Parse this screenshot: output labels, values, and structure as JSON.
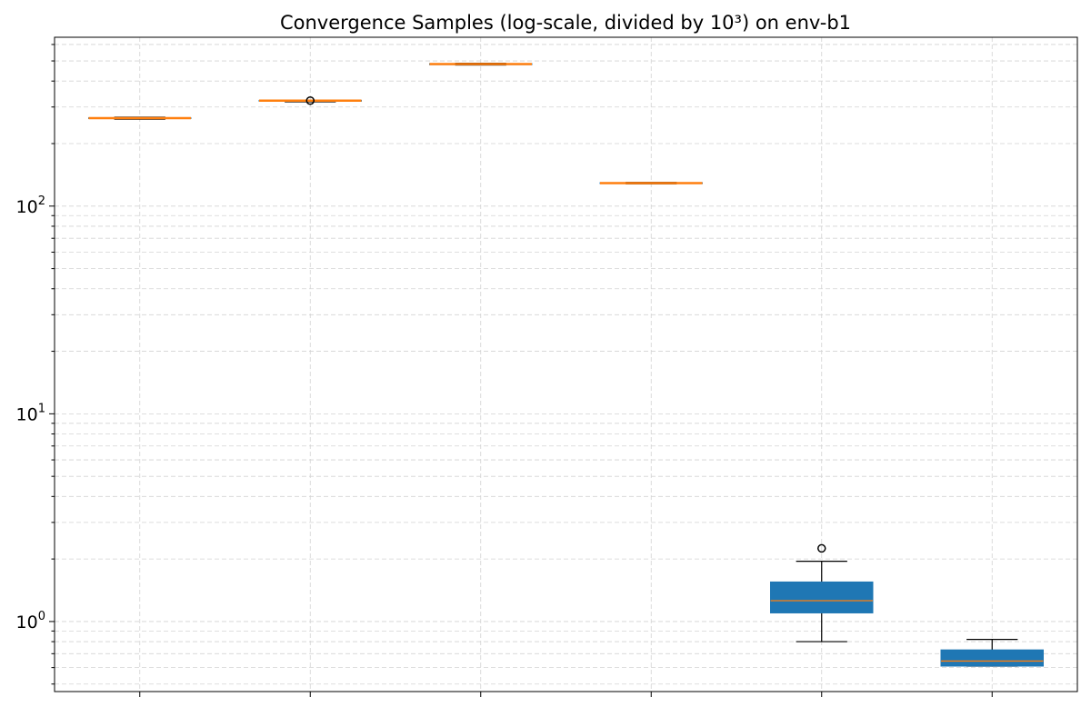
{
  "chart_data": {
    "type": "box",
    "title": "Convergence Samples (log-scale, divided by 10³) on env-b1",
    "xlabel": "",
    "ylabel": "",
    "yscale": "log",
    "ylim": [
      0.46,
      650
    ],
    "grid": true,
    "y_major_ticks": [
      {
        "value": 1,
        "base": "10",
        "exp": "0"
      },
      {
        "value": 10,
        "base": "10",
        "exp": "1"
      },
      {
        "value": 100,
        "base": "10",
        "exp": "2"
      }
    ],
    "categories": [
      "",
      "",
      "",
      "",
      "",
      ""
    ],
    "boxes": [
      {
        "whisker_low": 262,
        "q1": 264,
        "median": 265,
        "q3": 266,
        "whisker_high": 268,
        "outliers": []
      },
      {
        "whisker_low": 318,
        "q1": 320,
        "median": 322,
        "q3": 323,
        "whisker_high": 324,
        "outliers": [
          322
        ]
      },
      {
        "whisker_low": 478,
        "q1": 480,
        "median": 483,
        "q3": 485,
        "whisker_high": 487,
        "outliers": []
      },
      {
        "whisker_low": 128,
        "q1": 128.5,
        "median": 129,
        "q3": 129.5,
        "whisker_high": 130,
        "outliers": []
      },
      {
        "whisker_low": 0.8,
        "q1": 1.1,
        "median": 1.26,
        "q3": 1.55,
        "whisker_high": 1.95,
        "outliers": [
          2.25
        ]
      },
      {
        "whisker_low": 0.61,
        "q1": 0.61,
        "median": 0.645,
        "q3": 0.73,
        "whisker_high": 0.82,
        "outliers": []
      }
    ],
    "colors": {
      "box_fill": "#1f77b4",
      "median": "#ff7f0e",
      "whisker": "#000000",
      "grid": "#d3d3d3",
      "axis": "#000000"
    }
  }
}
